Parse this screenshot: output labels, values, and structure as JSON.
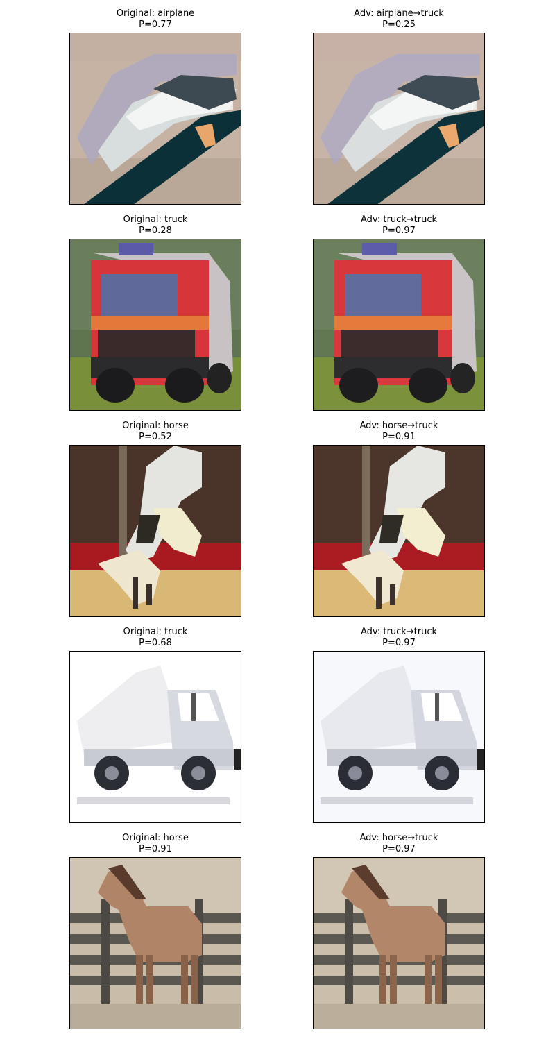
{
  "rows": [
    {
      "original": {
        "title": "Original: airplane",
        "prob": "P=0.77",
        "image": "airplane-photo"
      },
      "adversarial": {
        "title": "Adv: airplane→truck",
        "prob": "P=0.25",
        "image": "airplane-adversarial-photo"
      }
    },
    {
      "original": {
        "title": "Original: truck",
        "prob": "P=0.28",
        "image": "red-fire-truck-photo"
      },
      "adversarial": {
        "title": "Adv: truck→truck",
        "prob": "P=0.97",
        "image": "red-fire-truck-adversarial-photo"
      }
    },
    {
      "original": {
        "title": "Original: horse",
        "prob": "P=0.52",
        "image": "show-jumping-horse-photo"
      },
      "adversarial": {
        "title": "Adv: horse→truck",
        "prob": "P=0.91",
        "image": "show-jumping-horse-adversarial-photo"
      }
    },
    {
      "original": {
        "title": "Original: truck",
        "prob": "P=0.68",
        "image": "white-dump-truck-photo"
      },
      "adversarial": {
        "title": "Adv: truck→truck",
        "prob": "P=0.97",
        "image": "white-dump-truck-adversarial-photo"
      }
    },
    {
      "original": {
        "title": "Original: horse",
        "prob": "P=0.91",
        "image": "brown-horse-at-fence-photo"
      },
      "adversarial": {
        "title": "Adv: horse→truck",
        "prob": "P=0.97",
        "image": "brown-horse-at-fence-adversarial-photo"
      }
    }
  ]
}
